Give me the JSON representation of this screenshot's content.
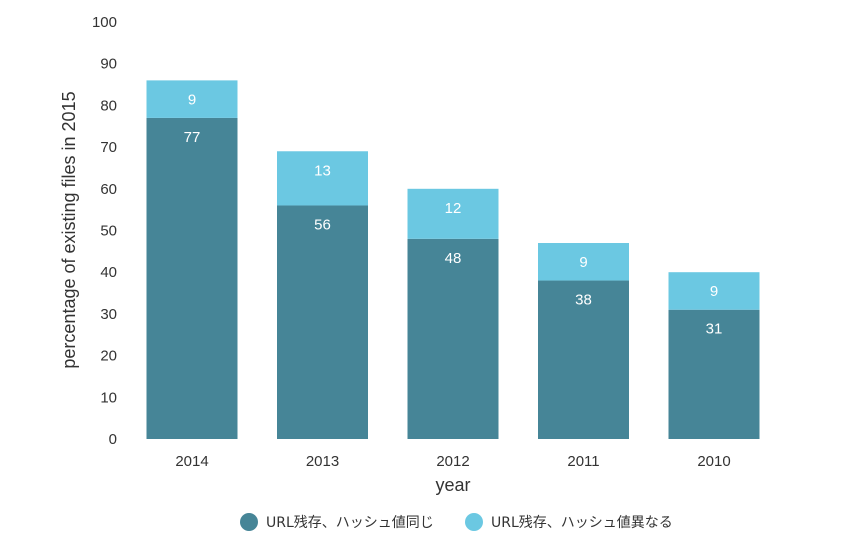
{
  "chart_data": {
    "type": "bar",
    "stacked": true,
    "title": "",
    "xlabel": "year",
    "ylabel": "percentage of existing files in 2015",
    "categories": [
      "2014",
      "2013",
      "2012",
      "2011",
      "2010"
    ],
    "series": [
      {
        "name": "URL残存、ハッシュ値同じ",
        "values": [
          77,
          56,
          48,
          38,
          31
        ],
        "color": "#468597"
      },
      {
        "name": "URL残存、ハッシュ値異なる",
        "values": [
          9,
          13,
          12,
          9,
          9
        ],
        "color": "#6bc8e2"
      }
    ],
    "ylim": [
      0,
      100
    ],
    "yticks": [
      0,
      10,
      20,
      30,
      40,
      50,
      60,
      70,
      80,
      90,
      100
    ],
    "grid": false,
    "legend_position": "bottom"
  }
}
